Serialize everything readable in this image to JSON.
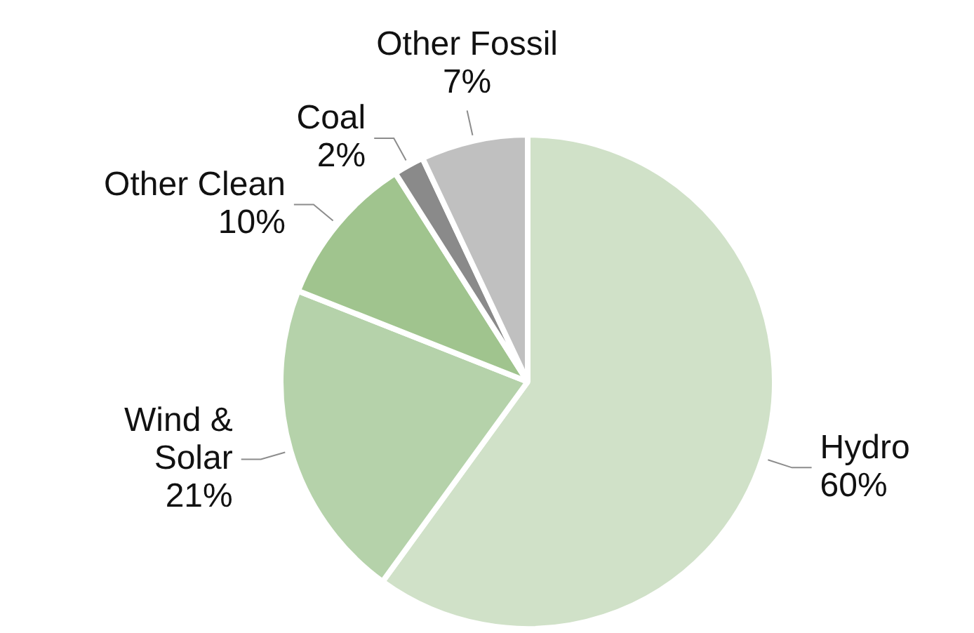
{
  "chart_data": {
    "type": "pie",
    "categories": [
      "Hydro",
      "Wind & Solar",
      "Other Clean",
      "Coal",
      "Other Fossil"
    ],
    "values": [
      60,
      21,
      10,
      2,
      7
    ],
    "value_labels": [
      "60%",
      "21%",
      "10%",
      "2%",
      "7%"
    ],
    "colors": [
      "#d0e1c8",
      "#b5d2aa",
      "#a0c48e",
      "#8a8a8a",
      "#c0c0c0"
    ]
  }
}
